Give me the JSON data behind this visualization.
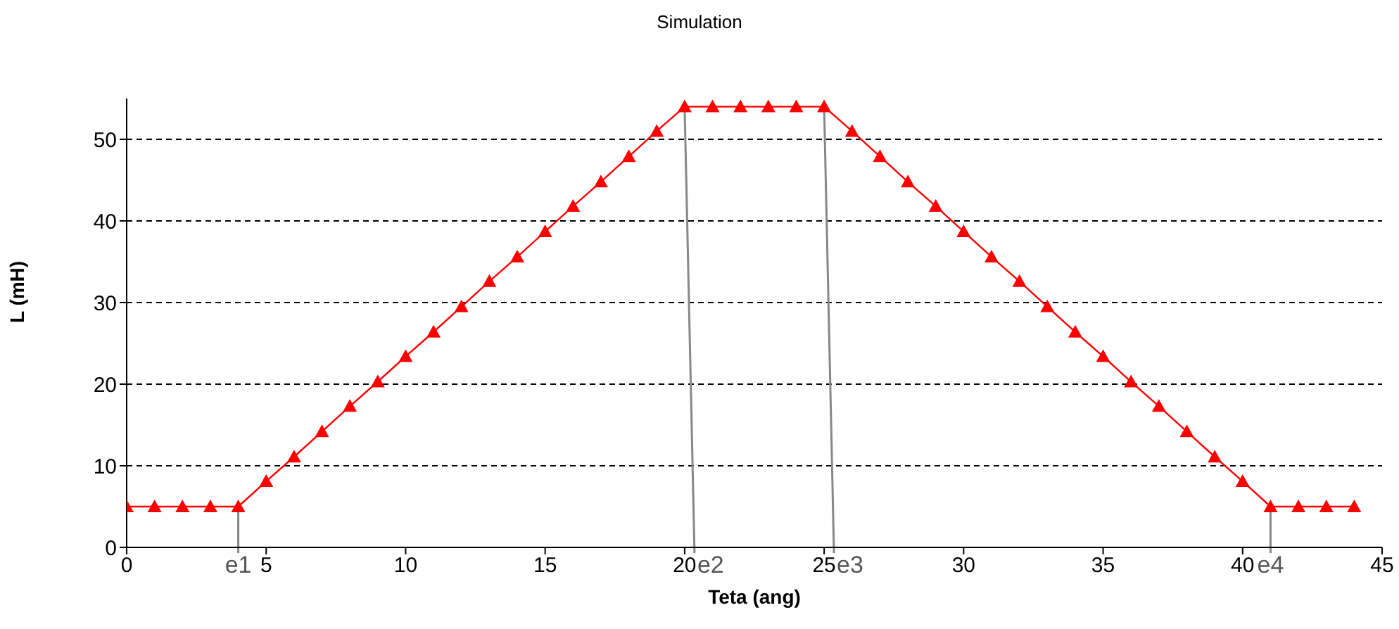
{
  "chart_data": {
    "type": "line",
    "title": "Simulation",
    "xlabel": "Teta (ang)",
    "ylabel": "L (mH)",
    "x": [
      0,
      1,
      2,
      3,
      4,
      5,
      6,
      7,
      8,
      9,
      10,
      11,
      12,
      13,
      14,
      15,
      16,
      17,
      18,
      19,
      20,
      21,
      22,
      23,
      24,
      25,
      26,
      27,
      28,
      29,
      30,
      31,
      32,
      33,
      34,
      35,
      36,
      37,
      38,
      39,
      40,
      41,
      42,
      43,
      44
    ],
    "series": [
      {
        "color": "#ff0000",
        "values": [
          5,
          5,
          5,
          5,
          5,
          8.1,
          11.1,
          14.2,
          17.3,
          20.3,
          23.4,
          26.4,
          29.5,
          32.6,
          35.6,
          38.7,
          41.8,
          44.8,
          47.9,
          51,
          54,
          54,
          54,
          54,
          54,
          54,
          51,
          47.9,
          44.8,
          41.8,
          38.7,
          35.6,
          32.6,
          29.5,
          26.4,
          23.4,
          20.3,
          17.3,
          14.2,
          11.1,
          8.1,
          5,
          5,
          5,
          5
        ]
      }
    ],
    "xlim": [
      0,
      45
    ],
    "xticks": [
      0,
      5,
      10,
      15,
      20,
      25,
      30,
      35,
      40,
      45
    ],
    "ylim": [
      0,
      55
    ],
    "yticks": [
      0,
      10,
      20,
      30,
      40,
      50
    ],
    "grid": "y",
    "marker": "triangle",
    "line_style": "solid",
    "legend": false,
    "annotations": [
      {
        "text": "e1",
        "x": 4,
        "y": 5
      },
      {
        "text": "e2",
        "x": 20,
        "y": 54
      },
      {
        "text": "e3",
        "x": 25,
        "y": 54
      },
      {
        "text": "e4",
        "x": 41,
        "y": 5
      }
    ]
  }
}
